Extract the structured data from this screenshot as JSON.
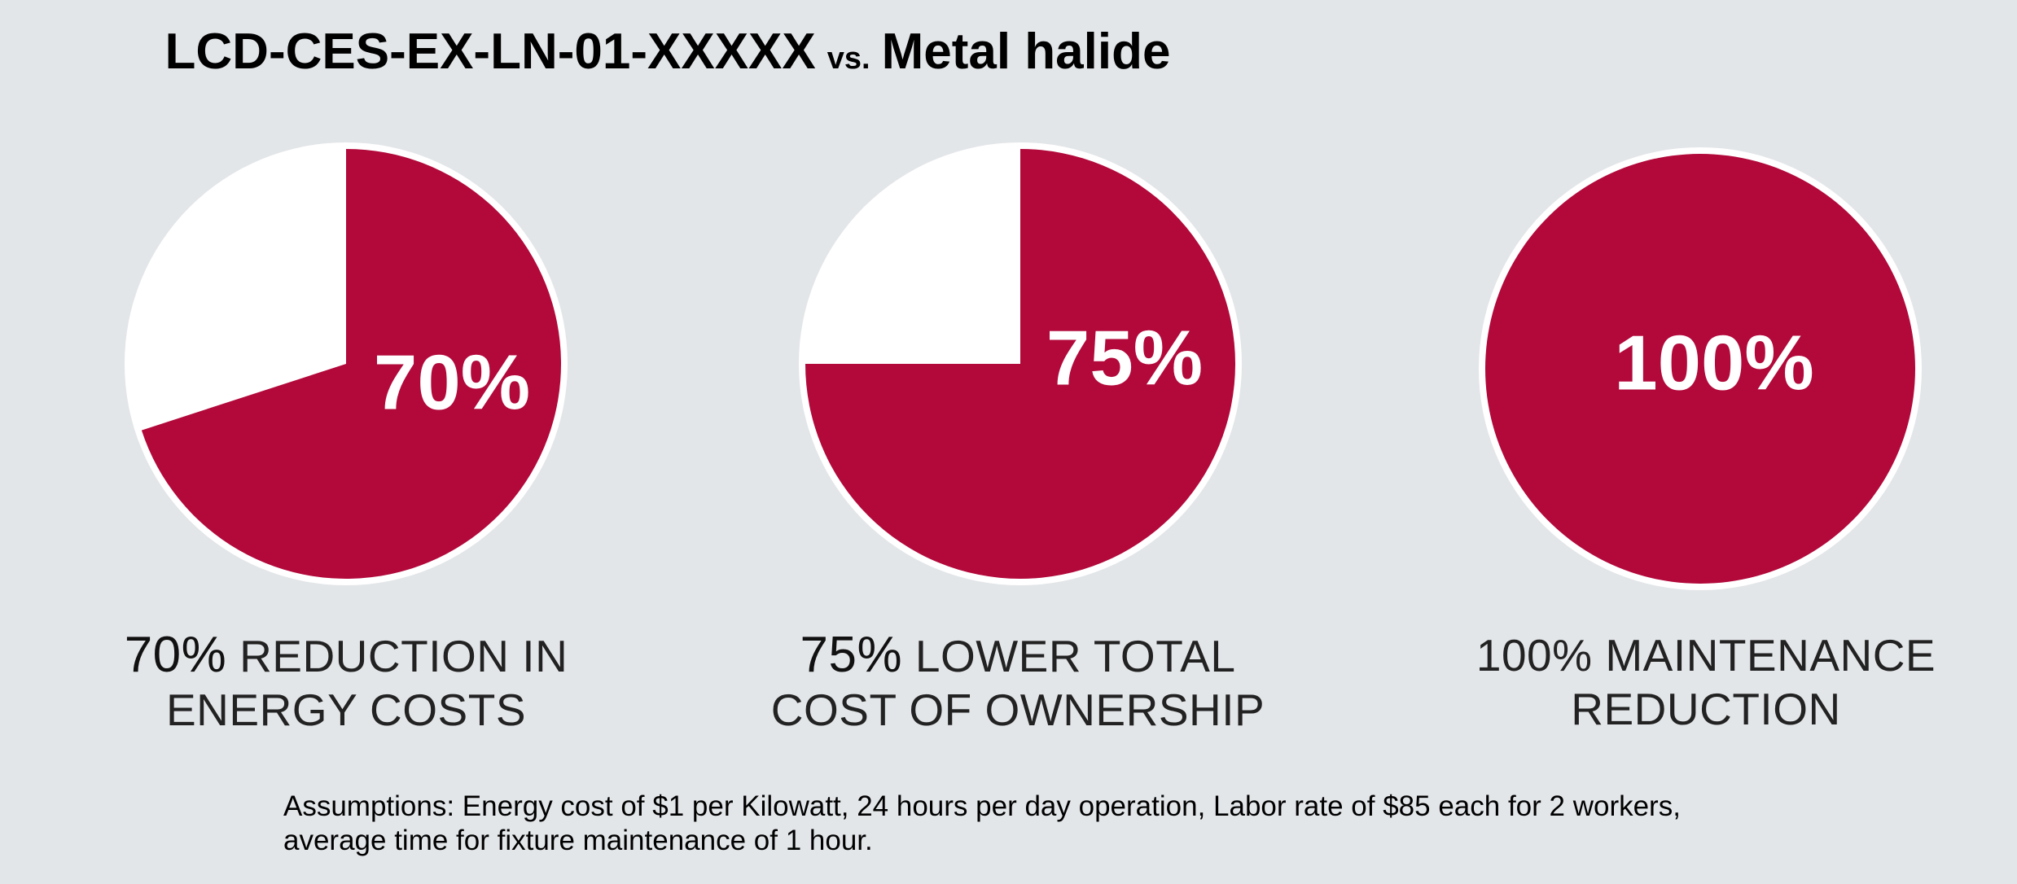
{
  "title": {
    "product": "LCD-CES-EX-LN-01-XXXXX",
    "vs": "vs.",
    "comparison": "Metal halide"
  },
  "colors": {
    "accent": "#b2083a",
    "slice_empty": "#ffffff",
    "background": "#e3e6e9"
  },
  "chart_data": [
    {
      "type": "pie",
      "value_label": "70%",
      "slices": [
        {
          "label": "70%",
          "value": 70,
          "color": "#b2083a"
        },
        {
          "value": 30,
          "color": "#ffffff"
        }
      ],
      "caption_pct": "70%",
      "caption_line1": "REDUCTION IN",
      "caption_line2": "ENERGY COSTS"
    },
    {
      "type": "pie",
      "value_label": "75%",
      "slices": [
        {
          "label": "75%",
          "value": 75,
          "color": "#b2083a"
        },
        {
          "value": 25,
          "color": "#ffffff"
        }
      ],
      "caption_pct": "75%",
      "caption_line1": "LOWER TOTAL",
      "caption_line2": "COST OF OWNERSHIP"
    },
    {
      "type": "pie",
      "value_label": "100%",
      "slices": [
        {
          "label": "100%",
          "value": 100,
          "color": "#b2083a"
        }
      ],
      "caption_pct": "100%",
      "caption_line1": "MAINTENANCE",
      "caption_line2": "REDUCTION"
    }
  ],
  "assumptions": {
    "line1": "Assumptions: Energy cost of $1 per Kilowatt, 24 hours per day operation, Labor rate of $85 each for 2 workers,",
    "line2": "average time for fixture maintenance of 1 hour."
  }
}
